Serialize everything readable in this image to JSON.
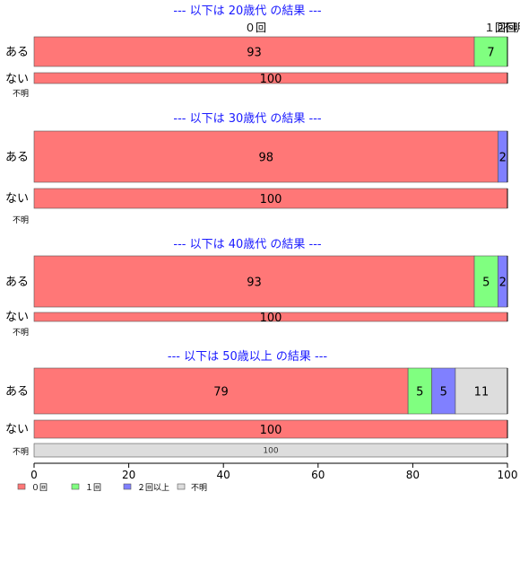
{
  "chart_data": {
    "type": "bar",
    "orientation": "horizontal",
    "stacked": true,
    "xlim": [
      0,
      100
    ],
    "xticks": [
      0,
      20,
      40,
      60,
      80,
      100
    ],
    "legend": {
      "position": "bottom-left",
      "entries": [
        {
          "name": "０回",
          "color": "#ff7777"
        },
        {
          "name": "１回",
          "color": "#80ff80"
        },
        {
          "name": "２回以上",
          "color": "#8080ff"
        },
        {
          "name": "不明",
          "color": "#dddddd"
        }
      ]
    },
    "top_labels": [
      "０回",
      "１回",
      "２回",
      "不明"
    ],
    "panels": [
      {
        "title": "--- 以下は 20歳代 の結果 ---",
        "rows": [
          {
            "label": "ある",
            "values": [
              93,
              7,
              0,
              0
            ],
            "labels": [
              "93",
              "7",
              "",
              ""
            ]
          },
          {
            "label": "ない",
            "values": [
              100,
              0,
              0,
              0
            ],
            "labels": [
              "100",
              "",
              "",
              ""
            ]
          },
          {
            "label": "不明",
            "values": [
              0,
              0,
              0,
              0
            ],
            "labels": [
              "",
              "",
              "",
              ""
            ]
          }
        ]
      },
      {
        "title": "--- 以下は 30歳代 の結果 ---",
        "rows": [
          {
            "label": "ある",
            "values": [
              98,
              0,
              2,
              0
            ],
            "labels": [
              "98",
              "",
              "2",
              ""
            ]
          },
          {
            "label": "ない",
            "values": [
              100,
              0,
              0,
              0
            ],
            "labels": [
              "100",
              "",
              "",
              ""
            ]
          },
          {
            "label": "不明",
            "values": [
              0,
              0,
              0,
              0
            ],
            "labels": [
              "",
              "",
              "",
              ""
            ]
          }
        ]
      },
      {
        "title": "--- 以下は 40歳代 の結果 ---",
        "rows": [
          {
            "label": "ある",
            "values": [
              93,
              5,
              2,
              0
            ],
            "labels": [
              "93",
              "5",
              "2",
              ""
            ]
          },
          {
            "label": "ない",
            "values": [
              100,
              0,
              0,
              0
            ],
            "labels": [
              "100",
              "",
              "",
              ""
            ]
          },
          {
            "label": "不明",
            "values": [
              0,
              0,
              0,
              0
            ],
            "labels": [
              "",
              "",
              "",
              ""
            ]
          }
        ]
      },
      {
        "title": "--- 以下は 50歳以上 の結果 ---",
        "rows": [
          {
            "label": "ある",
            "values": [
              79,
              5,
              5,
              11
            ],
            "labels": [
              "79",
              "5",
              "5",
              "11"
            ]
          },
          {
            "label": "ない",
            "values": [
              100,
              0,
              0,
              0
            ],
            "labels": [
              "100",
              "",
              "",
              ""
            ]
          },
          {
            "label": "不明",
            "values": [
              0,
              0,
              0,
              100
            ],
            "labels": [
              "",
              "",
              "",
              "100"
            ]
          }
        ]
      }
    ]
  }
}
